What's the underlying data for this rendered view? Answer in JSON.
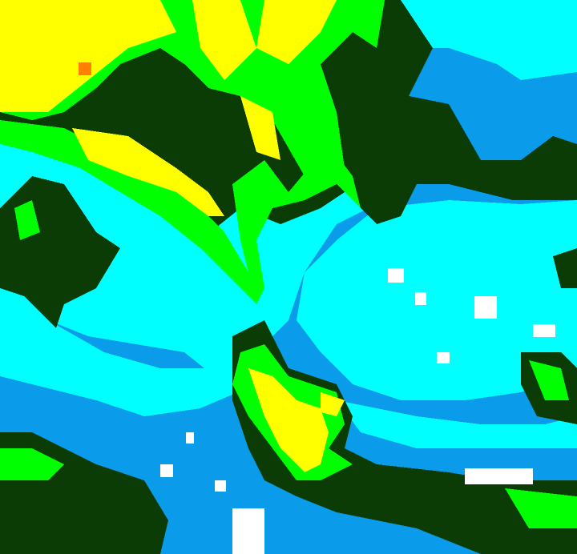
{
  "map": {
    "type": "classified raster",
    "palette": {
      "cyan": "#00ffff",
      "light_blue": "#19d8ff",
      "blue": "#0a9bea",
      "white": "#ffffff",
      "dark_green": "#0c3c06",
      "green": "#00ff00",
      "yellow_green": "#b0ff00",
      "yellow": "#ffff00",
      "orange": "#ff7f00"
    }
  }
}
